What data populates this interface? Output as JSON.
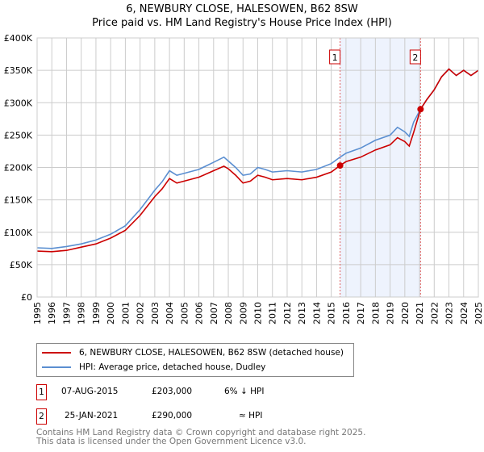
{
  "title": "6, NEWBURY CLOSE, HALESOWEN, B62 8SW",
  "subtitle": "Price paid vs. HM Land Registry's House Price Index (HPI)",
  "chart_data": {
    "type": "line",
    "xlim": [
      1995,
      2025
    ],
    "ylim": [
      0,
      400000
    ],
    "yticks": [
      0,
      50000,
      100000,
      150000,
      200000,
      250000,
      300000,
      350000,
      400000
    ],
    "ytick_labels": [
      "£0",
      "£50K",
      "£100K",
      "£150K",
      "£200K",
      "£250K",
      "£300K",
      "£350K",
      "£400K"
    ],
    "xticks": [
      "1995",
      "1996",
      "1997",
      "1998",
      "1999",
      "2000",
      "2001",
      "2002",
      "2003",
      "2004",
      "2005",
      "2006",
      "2007",
      "2008",
      "2009",
      "2010",
      "2011",
      "2012",
      "2013",
      "2014",
      "2015",
      "2016",
      "2017",
      "2018",
      "2019",
      "2020",
      "2021",
      "2022",
      "2023",
      "2024",
      "2025"
    ],
    "grid": true,
    "shaded_range": [
      2015.6,
      2021.07
    ],
    "series": [
      {
        "name": "6, NEWBURY CLOSE, HALESOWEN, B62 8SW (detached house)",
        "color": "#cc0000",
        "x": [
          1995,
          1996,
          1997,
          1998,
          1999,
          2000,
          2001,
          2002,
          2003,
          2003.5,
          2004,
          2004.5,
          2005,
          2006,
          2007,
          2007.7,
          2008,
          2008.5,
          2009,
          2009.5,
          2010,
          2010.5,
          2011,
          2012,
          2013,
          2014,
          2015,
          2015.6,
          2016,
          2017,
          2018,
          2019,
          2019.5,
          2020,
          2020.3,
          2020.6,
          2021.07,
          2021.5,
          2022,
          2022.5,
          2023,
          2023.5,
          2024,
          2024.5,
          2025
        ],
        "y": [
          71000,
          70000,
          72000,
          77000,
          82000,
          91000,
          103000,
          126000,
          155000,
          167000,
          183000,
          176000,
          179000,
          185000,
          195000,
          202000,
          198000,
          188000,
          176000,
          179000,
          188000,
          185000,
          181000,
          183000,
          181000,
          185000,
          193000,
          203000,
          209000,
          216000,
          227000,
          235000,
          246000,
          240000,
          233000,
          254000,
          290000,
          305000,
          320000,
          340000,
          352000,
          342000,
          350000,
          342000,
          350000
        ]
      },
      {
        "name": "HPI: Average price, detached house, Dudley",
        "color": "#5b8fd1",
        "x": [
          1995,
          1996,
          1997,
          1998,
          1999,
          2000,
          2001,
          2002,
          2003,
          2003.5,
          2004,
          2004.5,
          2005,
          2006,
          2007,
          2007.7,
          2008,
          2008.5,
          2009,
          2009.5,
          2010,
          2010.5,
          2011,
          2012,
          2013,
          2014,
          2015,
          2015.6,
          2016,
          2017,
          2018,
          2019,
          2019.5,
          2020,
          2020.3,
          2020.6,
          2021.07,
          2021.5,
          2022,
          2022.5,
          2023,
          2023.5,
          2024,
          2024.5,
          2025
        ],
        "y": [
          76000,
          75000,
          78000,
          82000,
          88000,
          97000,
          110000,
          135000,
          165000,
          178000,
          195000,
          188000,
          191000,
          197000,
          208000,
          216000,
          210000,
          200000,
          188000,
          190000,
          200000,
          197000,
          193000,
          195000,
          193000,
          197000,
          206000,
          216000,
          222000,
          230000,
          242000,
          250000,
          262000,
          255000,
          248000,
          270000,
          290000,
          305000,
          320000,
          340000,
          352000,
          342000,
          350000,
          342000,
          350000
        ]
      }
    ],
    "sales": [
      {
        "label": "1",
        "x": 2015.6,
        "y": 203000
      },
      {
        "label": "2",
        "x": 2021.07,
        "y": 290000
      }
    ]
  },
  "legend": [
    {
      "label": "6, NEWBURY CLOSE, HALESOWEN, B62 8SW (detached house)"
    },
    {
      "label": "HPI: Average price, detached house, Dudley"
    }
  ],
  "transactions": [
    {
      "num": "1",
      "date": "07-AUG-2015",
      "price": "£203,000",
      "hpi": "6% ↓ HPI"
    },
    {
      "num": "2",
      "date": "25-JAN-2021",
      "price": "£290,000",
      "hpi": "≈ HPI"
    }
  ],
  "footer": [
    "Contains HM Land Registry data © Crown copyright and database right 2025.",
    "This data is licensed under the Open Government Licence v3.0."
  ]
}
